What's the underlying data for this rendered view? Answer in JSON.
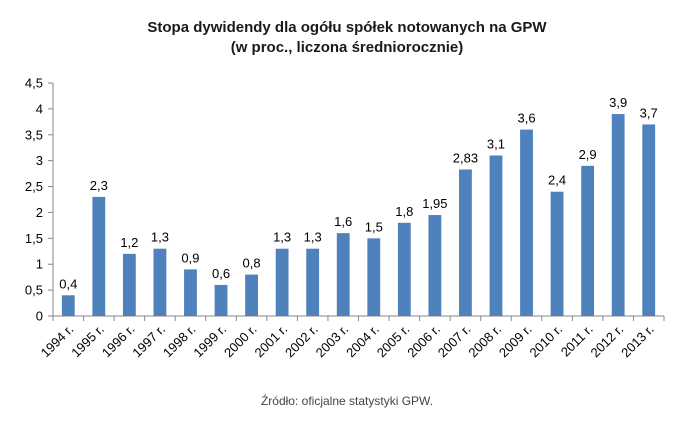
{
  "chart_data": {
    "type": "bar",
    "title": "Stopa dywidendy dla ogółu spółek notowanych na GPW",
    "subtitle": "(w proc., liczona średniorocznie)",
    "categories": [
      "1994 r.",
      "1995 r.",
      "1996 r.",
      "1997 r.",
      "1998 r.",
      "1999 r.",
      "2000 r.",
      "2001 r.",
      "2002 r.",
      "2003 r.",
      "2004 r.",
      "2005 r.",
      "2006 r.",
      "2007 r.",
      "2008 r.",
      "2009 r.",
      "2010 r.",
      "2011 r.",
      "2012 r.",
      "2013 r."
    ],
    "values": [
      0.4,
      2.3,
      1.2,
      1.3,
      0.9,
      0.6,
      0.8,
      1.3,
      1.3,
      1.6,
      1.5,
      1.8,
      1.95,
      2.83,
      3.1,
      3.6,
      2.4,
      2.9,
      3.9,
      3.7
    ],
    "data_labels": [
      "0,4",
      "2,3",
      "1,2",
      "1,3",
      "0,9",
      "0,6",
      "0,8",
      "1,3",
      "1,3",
      "1,6",
      "1,5",
      "1,8",
      "1,95",
      "2,83",
      "3,1",
      "3,6",
      "2,4",
      "2,9",
      "3,9",
      "3,7"
    ],
    "y_ticks": [
      "0",
      "0,5",
      "1",
      "1,5",
      "2",
      "2,5",
      "3",
      "3,5",
      "4",
      "4,5"
    ],
    "ylim": [
      0,
      4.5
    ],
    "xlabel": "",
    "ylabel": "",
    "grid": false,
    "bar_color": "#4f81bd",
    "axis_color": "#868686",
    "source": "Źródło: oficjalne statystyki GPW."
  }
}
